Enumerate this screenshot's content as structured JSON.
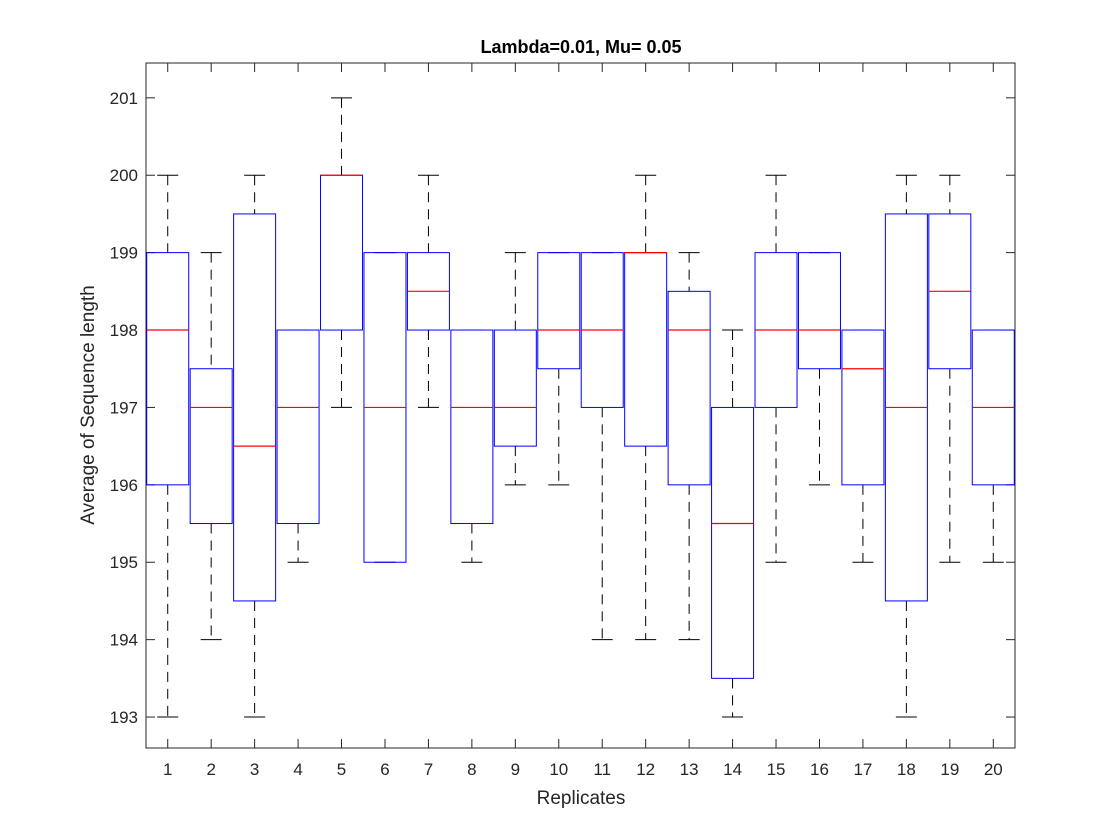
{
  "chart_data": {
    "type": "box",
    "title": "Lambda=0.01, Mu= 0.05",
    "xlabel": "Replicates",
    "ylabel": "Average of Sequence length",
    "ylim": [
      192.6,
      201.45
    ],
    "yticks": [
      193,
      194,
      195,
      196,
      197,
      198,
      199,
      200,
      201
    ],
    "categories": [
      "1",
      "2",
      "3",
      "4",
      "5",
      "6",
      "7",
      "8",
      "9",
      "10",
      "11",
      "12",
      "13",
      "14",
      "15",
      "16",
      "17",
      "18",
      "19",
      "20"
    ],
    "boxes": [
      {
        "min": 193,
        "q1": 196,
        "median": 198,
        "q3": 199,
        "max": 200
      },
      {
        "min": 194,
        "q1": 195.5,
        "median": 197,
        "q3": 197.5,
        "max": 199
      },
      {
        "min": 193,
        "q1": 194.5,
        "median": 196.5,
        "q3": 199.5,
        "max": 200
      },
      {
        "min": 195,
        "q1": 195.5,
        "median": 197,
        "q3": 198,
        "max": 198
      },
      {
        "min": 197,
        "q1": 198,
        "median": 200,
        "q3": 200,
        "max": 201
      },
      {
        "min": 195,
        "q1": 195,
        "median": 197,
        "q3": 199,
        "max": 199
      },
      {
        "min": 197,
        "q1": 198,
        "median": 198.5,
        "q3": 199,
        "max": 200
      },
      {
        "min": 195,
        "q1": 195.5,
        "median": 197,
        "q3": 198,
        "max": 198
      },
      {
        "min": 196,
        "q1": 196.5,
        "median": 197,
        "q3": 198,
        "max": 199
      },
      {
        "min": 196,
        "q1": 197.5,
        "median": 198,
        "q3": 199,
        "max": 199
      },
      {
        "min": 194,
        "q1": 197,
        "median": 198,
        "q3": 199,
        "max": 199
      },
      {
        "min": 194,
        "q1": 196.5,
        "median": 199,
        "q3": 199,
        "max": 200
      },
      {
        "min": 194,
        "q1": 196,
        "median": 198,
        "q3": 198.5,
        "max": 199
      },
      {
        "min": 193,
        "q1": 193.5,
        "median": 195.5,
        "q3": 197,
        "max": 198
      },
      {
        "min": 195,
        "q1": 197,
        "median": 198,
        "q3": 199,
        "max": 200
      },
      {
        "min": 196,
        "q1": 197.5,
        "median": 198,
        "q3": 199,
        "max": 199
      },
      {
        "min": 195,
        "q1": 196,
        "median": 197.5,
        "q3": 198,
        "max": 198
      },
      {
        "min": 193,
        "q1": 194.5,
        "median": 197,
        "q3": 199.5,
        "max": 200
      },
      {
        "min": 195,
        "q1": 197.5,
        "median": 198.5,
        "q3": 199.5,
        "max": 200
      },
      {
        "min": 195,
        "q1": 196,
        "median": 197,
        "q3": 198,
        "max": 198
      }
    ],
    "grid": false,
    "legend": "none",
    "colors": {
      "box": "#0000ff",
      "median": "#ff0000",
      "whisker": "#000000",
      "axes": "#262626"
    }
  }
}
